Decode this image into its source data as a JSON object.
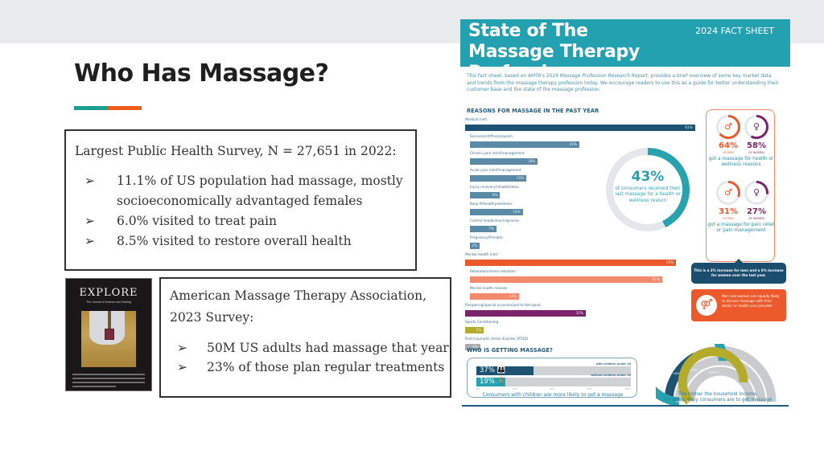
{
  "slide": {
    "title": "Who Has Massage?",
    "accent_colors": [
      "#1a9e8f",
      "#ef5b1a"
    ]
  },
  "survey_box": {
    "heading": "Largest Public Health Survey, N = 27,651 in 2022:",
    "bullet_glyph": "➢",
    "bullets": [
      "11.1% of US population had massage, mostly socioeconomically advantaged females",
      "6.0% visited to treat pain",
      "8.5% visited to restore overall health"
    ]
  },
  "journal_cover": {
    "title": "EXPLORE",
    "tagline": "The Journal of Science and Healing"
  },
  "amta_box": {
    "heading": "American Massage Therapy Association, 2023 Survey:",
    "bullet_glyph": "➢",
    "bullets": [
      "50M US adults had massage that year",
      "23% of those plan regular treatments"
    ]
  },
  "fact_sheet": {
    "title": "State of The Massage Therapy Profession",
    "badge": "2024 FACT SHEET",
    "intro_before": "This fact sheet, based on AMTA's 2024 ",
    "intro_italic": "Massage Profession Research Report",
    "intro_after": ", provides a brief overview of some key market data and trends from the massage therapy profession today. We encourage readers to use this as a guide for better understanding their customer base and the state of the massage profession.",
    "reasons_title": "REASONS FOR MASSAGE IN THE PAST YEAR",
    "reasons": [
      {
        "label": "Medical (net)",
        "value": "61%",
        "pct": 61,
        "color": "#1d5273",
        "sub": false
      },
      {
        "label": "Soreness/stiffness/spasm",
        "value": "29%",
        "pct": 29,
        "color": "#5a8aa6",
        "sub": true
      },
      {
        "label": "Chronic pain relief/management",
        "value": "18%",
        "pct": 18,
        "color": "#5a8aa6",
        "sub": true
      },
      {
        "label": "Acute pain relief/management",
        "value": "15%",
        "pct": 15,
        "color": "#5a8aa6",
        "sub": true
      },
      {
        "label": "Injury recovery/rehabilitation",
        "value": "8%",
        "pct": 8,
        "color": "#5a8aa6",
        "sub": true
      },
      {
        "label": "Keep fit/healthy/wellness",
        "value": "14%",
        "pct": 14,
        "color": "#5a8aa6",
        "sub": true
      },
      {
        "label": "Control headaches/migraines",
        "value": "7%",
        "pct": 7,
        "color": "#5a8aa6",
        "sub": true
      },
      {
        "label": "Pregnancy/Prenatal",
        "value": "2%",
        "pct": 2,
        "color": "#5a8aa6",
        "sub": true
      },
      {
        "label": "Mental Health (net)",
        "value": "56%",
        "pct": 56,
        "color": "#ec5a2b",
        "sub": false
      },
      {
        "label": "Relaxation/stress reduction",
        "value": "51%",
        "pct": 51,
        "color": "#f28a6e",
        "sub": true
      },
      {
        "label": "Mental health reasons",
        "value": "13%",
        "pct": 13,
        "color": "#f28a6e",
        "sub": true
      },
      {
        "label": "Pampering/special occasion/just to feel good",
        "value": "32%",
        "pct": 32,
        "color": "#7b236b",
        "sub": false
      },
      {
        "label": "Sports Conditioning",
        "value": "5%",
        "pct": 5,
        "color": "#b3ab2c",
        "sub": false
      },
      {
        "label": "Post-traumatic stress disorder (PTSD)",
        "value": "4%",
        "pct": 4,
        "color": "#a9abae",
        "sub": false
      }
    ],
    "donut": {
      "value": "43%",
      "caption": "of consumers received their last massage for a health or wellness reason",
      "color": "#27a2ae"
    },
    "gender": {
      "health": {
        "men": "64%",
        "men_label": "OF MEN",
        "women": "58%",
        "women_label": "OF WOMEN",
        "caption": "got a massage for health or wellness reasons"
      },
      "pain": {
        "men": "31%",
        "men_label": "OF MEN",
        "women": "27%",
        "women_label": "OF WOMEN",
        "caption": "got a massage for pain relief or pain management"
      },
      "men_color": "#ec5a2b",
      "women_color": "#7b236b"
    },
    "callout": "This is a 3% increase for men and a 6% increase for women over the last year.",
    "doctor_note": "Men and women are equally likely to discuss massage with their doctor or health care provider",
    "who_title": "WHO IS GETTING MASSAGE?",
    "children": [
      {
        "value": "37%",
        "pct": 37,
        "label": "with children under 18",
        "color": "#1d5273"
      },
      {
        "value": "19%",
        "pct": 19,
        "label": "without children under 18",
        "color": "#27a2ae"
      }
    ],
    "axis_ticks": [
      "0%",
      "25%",
      "50%",
      "75%",
      "100%"
    ],
    "children_caption": "Consumers with children are more likely to get a massage",
    "income": [
      {
        "label": "<$50K",
        "value": "17%",
        "color": "#1d5273"
      },
      {
        "label": "$50K - 100K",
        "value": "29%",
        "color": "#27a2ae"
      },
      {
        "label": "$100K+",
        "value": "39%",
        "color": "#b3ab2c"
      }
    ],
    "income_caption_1": "The higher the household income,",
    "income_caption_2": "the more likely consumers are to get massage"
  }
}
